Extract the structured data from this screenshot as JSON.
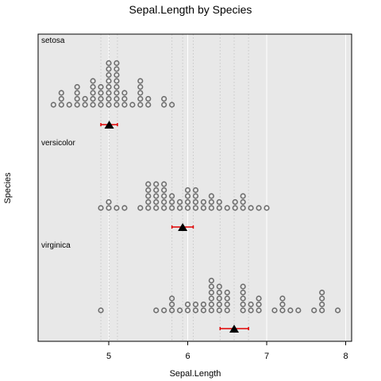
{
  "chart_data": {
    "type": "scatter",
    "subtype": "dot-stack (Wilkinson dot plot) with mean marker and error bar",
    "title": "Sepal.Length by Species",
    "xlabel": "Sepal.Length",
    "ylabel": "Species",
    "xlim": [
      4.2,
      8.1
    ],
    "xticks": [
      5,
      6,
      7,
      8
    ],
    "grid": true,
    "legend": "none",
    "colors": {
      "panel_bg": "#e8e8e8",
      "grid_major": "#ffffff",
      "grid_minor": "#c8c8c8",
      "dot_stroke": "#6e6e6e",
      "mean_marker": "#000000",
      "error_bar": "#e00000"
    },
    "groups": [
      {
        "name": "setosa",
        "dots": [
          {
            "x": 4.3,
            "count": 1
          },
          {
            "x": 4.4,
            "count": 3
          },
          {
            "x": 4.5,
            "count": 1
          },
          {
            "x": 4.6,
            "count": 4
          },
          {
            "x": 4.7,
            "count": 2
          },
          {
            "x": 4.8,
            "count": 5
          },
          {
            "x": 4.9,
            "count": 4
          },
          {
            "x": 5.0,
            "count": 8
          },
          {
            "x": 5.1,
            "count": 8
          },
          {
            "x": 5.2,
            "count": 3
          },
          {
            "x": 5.3,
            "count": 1
          },
          {
            "x": 5.4,
            "count": 5
          },
          {
            "x": 5.5,
            "count": 2
          },
          {
            "x": 5.7,
            "count": 2
          },
          {
            "x": 5.8,
            "count": 1
          }
        ],
        "mean": 5.006,
        "ci": [
          4.9,
          5.11
        ],
        "mean_lines": [
          4.9,
          5.006,
          5.11
        ]
      },
      {
        "name": "versicolor",
        "dots": [
          {
            "x": 4.9,
            "count": 1
          },
          {
            "x": 5.0,
            "count": 2
          },
          {
            "x": 5.1,
            "count": 1
          },
          {
            "x": 5.2,
            "count": 1
          },
          {
            "x": 5.4,
            "count": 1
          },
          {
            "x": 5.5,
            "count": 5
          },
          {
            "x": 5.6,
            "count": 5
          },
          {
            "x": 5.7,
            "count": 5
          },
          {
            "x": 5.8,
            "count": 3
          },
          {
            "x": 5.9,
            "count": 2
          },
          {
            "x": 6.0,
            "count": 4
          },
          {
            "x": 6.1,
            "count": 4
          },
          {
            "x": 6.2,
            "count": 2
          },
          {
            "x": 6.3,
            "count": 3
          },
          {
            "x": 6.4,
            "count": 2
          },
          {
            "x": 6.5,
            "count": 1
          },
          {
            "x": 6.6,
            "count": 2
          },
          {
            "x": 6.7,
            "count": 3
          },
          {
            "x": 6.8,
            "count": 1
          },
          {
            "x": 6.9,
            "count": 1
          },
          {
            "x": 7.0,
            "count": 1
          }
        ],
        "mean": 5.936,
        "ci": [
          5.8,
          6.07
        ],
        "mean_lines": [
          5.8,
          5.936,
          6.07
        ]
      },
      {
        "name": "virginica",
        "dots": [
          {
            "x": 4.9,
            "count": 1
          },
          {
            "x": 5.6,
            "count": 1
          },
          {
            "x": 5.7,
            "count": 1
          },
          {
            "x": 5.8,
            "count": 3
          },
          {
            "x": 5.9,
            "count": 1
          },
          {
            "x": 6.0,
            "count": 2
          },
          {
            "x": 6.1,
            "count": 2
          },
          {
            "x": 6.2,
            "count": 2
          },
          {
            "x": 6.3,
            "count": 6
          },
          {
            "x": 6.4,
            "count": 5
          },
          {
            "x": 6.5,
            "count": 4
          },
          {
            "x": 6.7,
            "count": 5
          },
          {
            "x": 6.8,
            "count": 2
          },
          {
            "x": 6.9,
            "count": 3
          },
          {
            "x": 7.1,
            "count": 1
          },
          {
            "x": 7.2,
            "count": 3
          },
          {
            "x": 7.3,
            "count": 1
          },
          {
            "x": 7.4,
            "count": 1
          },
          {
            "x": 7.6,
            "count": 1
          },
          {
            "x": 7.7,
            "count": 4
          },
          {
            "x": 7.9,
            "count": 1
          }
        ],
        "mean": 6.588,
        "ci": [
          6.41,
          6.77
        ],
        "mean_lines": [
          6.41,
          6.588,
          6.77
        ]
      }
    ]
  }
}
